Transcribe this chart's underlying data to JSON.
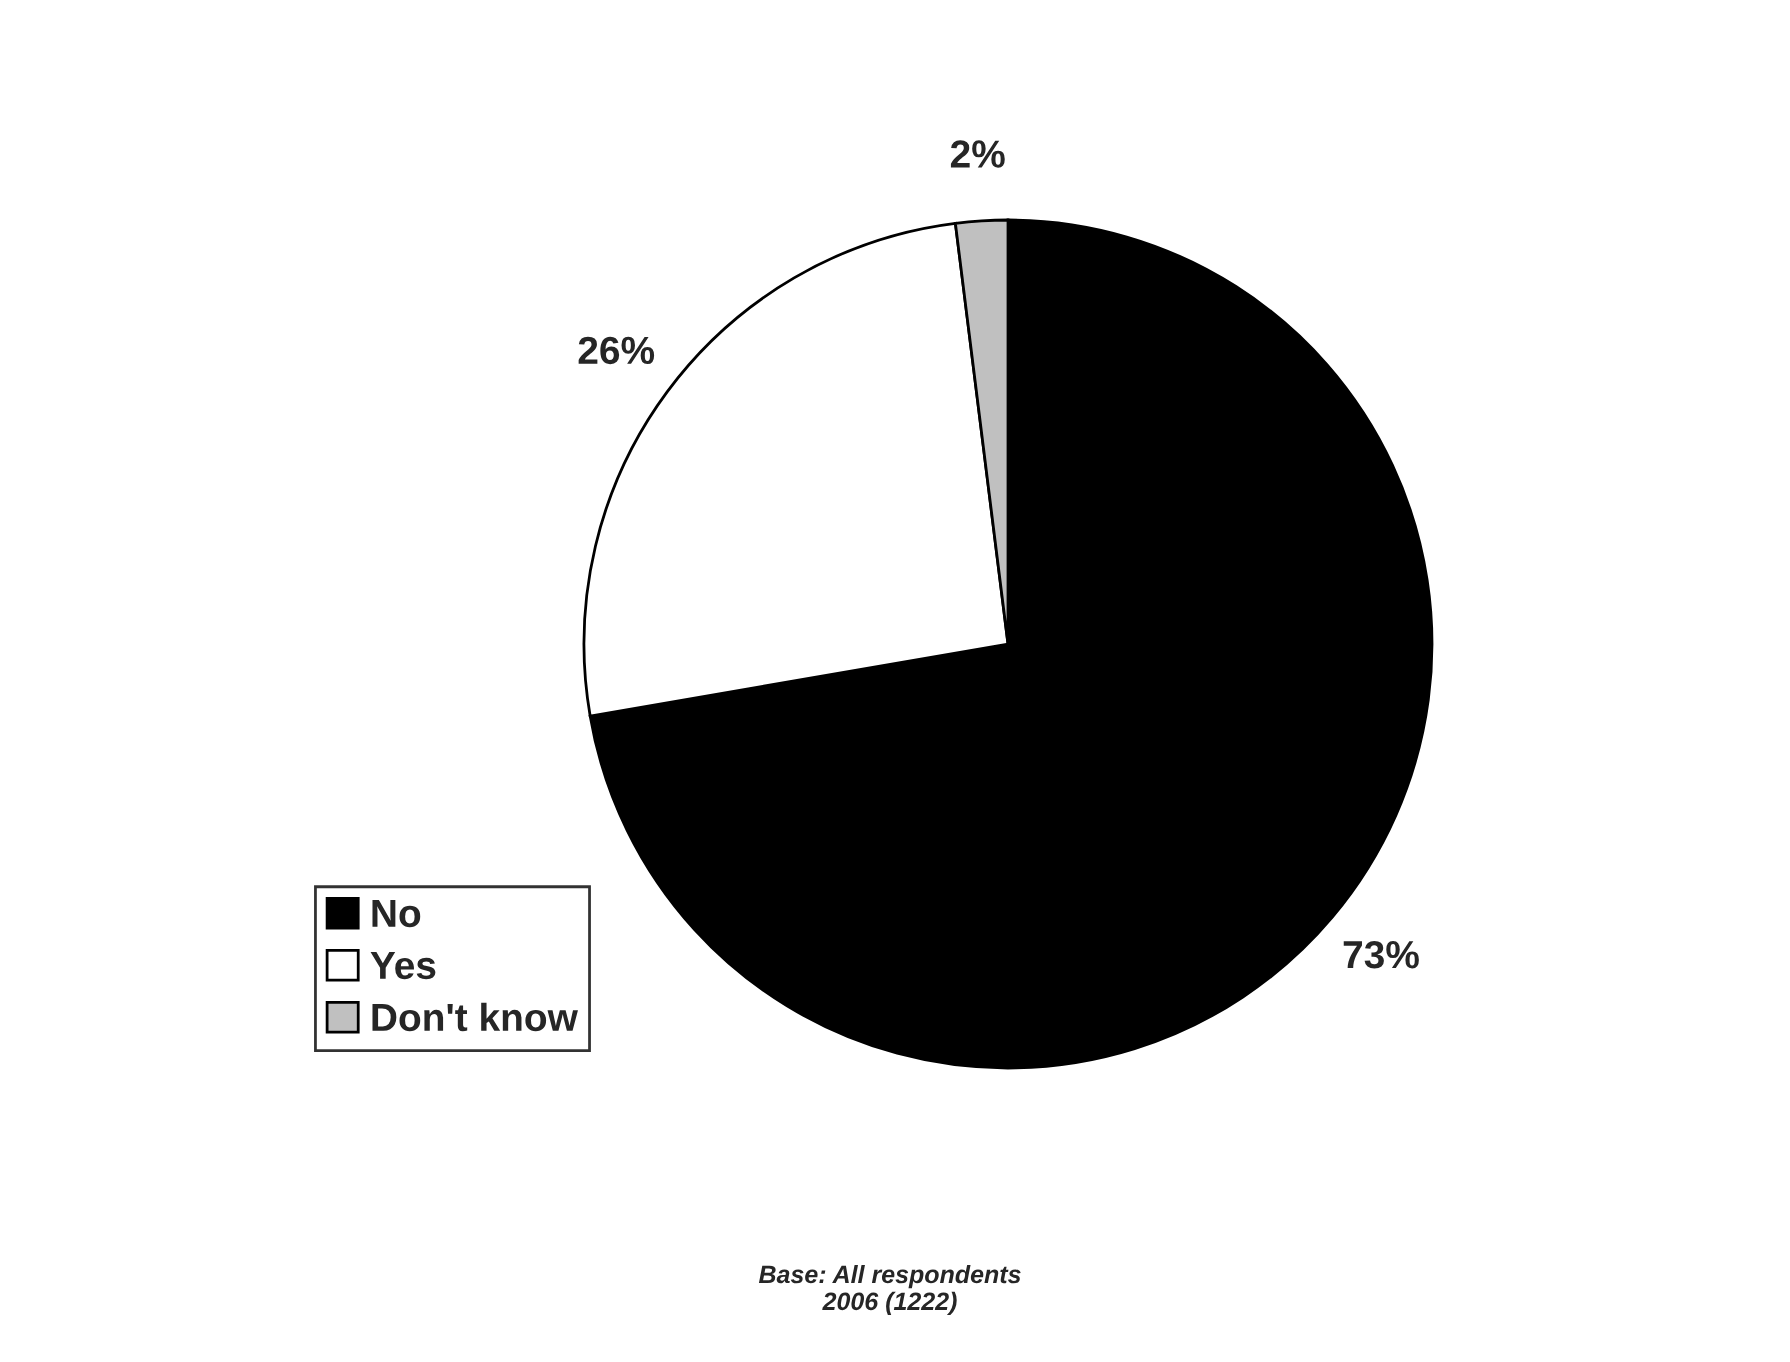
{
  "chart_data": {
    "type": "pie",
    "categories": [
      "No",
      "Yes",
      "Don't know"
    ],
    "values": [
      73,
      26,
      2
    ],
    "colors": [
      "#000000",
      "#ffffff",
      "#c0c0c0"
    ],
    "value_labels": [
      "73%",
      "26%",
      "2%"
    ],
    "legend": "left",
    "annotations": [
      "Base: All respondents\n2006 (1222)"
    ]
  }
}
